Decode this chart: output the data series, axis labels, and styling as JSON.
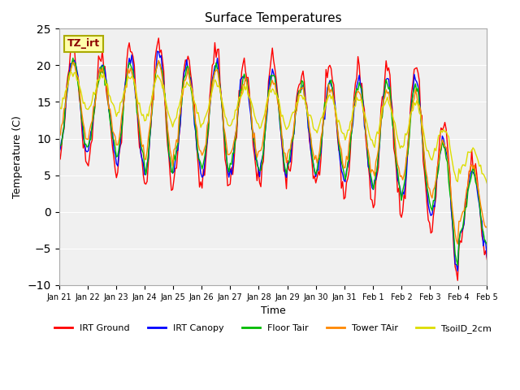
{
  "title": "Surface Temperatures",
  "xlabel": "Time",
  "ylabel": "Temperature (C)",
  "ylim": [
    -10,
    25
  ],
  "yticks": [
    -10,
    -5,
    0,
    5,
    10,
    15,
    20,
    25
  ],
  "series_colors": {
    "IRT Ground": "#FF0000",
    "IRT Canopy": "#0000FF",
    "Floor Tair": "#00BB00",
    "Tower TAir": "#FF8800",
    "TsoilD_2cm": "#DDDD00"
  },
  "annotation_text": "TZ_irt",
  "annotation_bbox": {
    "facecolor": "#FFFFAA",
    "edgecolor": "#AAAA00"
  },
  "x_tick_labels": [
    "Jan 21",
    "Jan 22",
    "Jan 23",
    "Jan 24",
    "Jan 25",
    "Jan 26",
    "Jan 27",
    "Jan 28",
    "Jan 29",
    "Jan 30",
    "Jan 31",
    "Feb 1",
    "Feb 2",
    "Feb 3",
    "Feb 4",
    "Feb 5"
  ],
  "plot_bg": "#F0F0F0",
  "linewidth": 1.0,
  "n_points": 336,
  "days": 15
}
